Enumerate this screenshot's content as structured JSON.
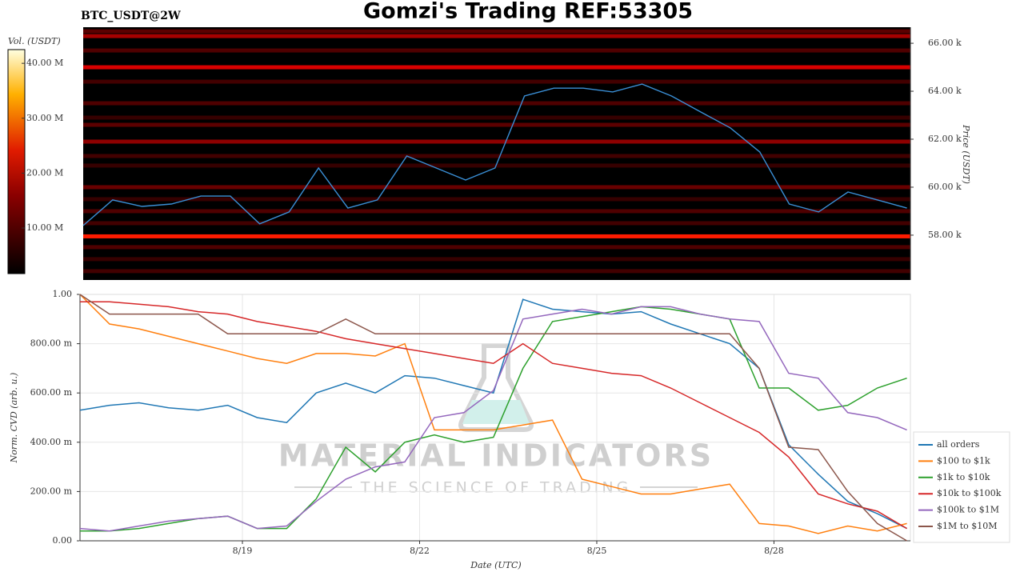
{
  "chart_data": [
    {
      "type": "heatmap",
      "title": "Gomzi's Trading REF:53305",
      "subtitle": "BTC_USDT@2W",
      "y_label": "Price (USDT)",
      "colorbar_label": "Vol. (USDT)",
      "xlim": [
        0.25,
        14.31
      ],
      "ylim": [
        56130,
        66670
      ],
      "yticks": [
        {
          "value": 58000,
          "label": "58.00 k"
        },
        {
          "value": 60000,
          "label": "60.00 k"
        },
        {
          "value": 62000,
          "label": "62.00 k"
        },
        {
          "value": 64000,
          "label": "64.00 k"
        },
        {
          "value": 66000,
          "label": "66.00 k"
        }
      ],
      "clim": [
        1700000,
        42500000
      ],
      "cticks": [
        {
          "value": 10000000,
          "label": "10.00 M"
        },
        {
          "value": 20000000,
          "label": "20.00 M"
        },
        {
          "value": 30000000,
          "label": "30.00 M"
        },
        {
          "value": 40000000,
          "label": "40.00 M"
        }
      ],
      "bands": [
        {
          "price": 66500,
          "volume": 9000000
        },
        {
          "price": 66300,
          "volume": 15000000
        },
        {
          "price": 65700,
          "volume": 8000000
        },
        {
          "price": 65000,
          "volume": 19000000
        },
        {
          "price": 64400,
          "volume": 7000000
        },
        {
          "price": 63500,
          "volume": 8000000
        },
        {
          "price": 62900,
          "volume": 6000000
        },
        {
          "price": 62600,
          "volume": 9000000
        },
        {
          "price": 61900,
          "volume": 13000000
        },
        {
          "price": 61300,
          "volume": 7000000
        },
        {
          "price": 60900,
          "volume": 6000000
        },
        {
          "price": 60000,
          "volume": 10000000
        },
        {
          "price": 59500,
          "volume": 6000000
        },
        {
          "price": 59000,
          "volume": 8000000
        },
        {
          "price": 58500,
          "volume": 7000000
        },
        {
          "price": 57950,
          "volume": 22000000
        },
        {
          "price": 57500,
          "volume": 8000000
        },
        {
          "price": 57000,
          "volume": 6000000
        },
        {
          "price": 56500,
          "volume": 7000000
        }
      ],
      "series": [
        {
          "color": "#3a8fd6",
          "values": [
            58400,
            59470,
            59200,
            59300,
            59630,
            59630,
            58470,
            58970,
            60800,
            59130,
            59470,
            61300,
            60800,
            60300,
            60800,
            63800,
            64130,
            64130,
            63970,
            64300,
            63800,
            63130,
            62470,
            61470,
            59300,
            58970,
            59800,
            59470,
            59130
          ]
        }
      ],
      "x": [
        0.25,
        0.75,
        1.25,
        1.75,
        2.25,
        2.75,
        3.25,
        3.75,
        4.25,
        4.75,
        5.25,
        5.75,
        6.25,
        6.75,
        7.25,
        7.75,
        8.25,
        8.75,
        9.25,
        9.75,
        10.25,
        10.75,
        11.25,
        11.75,
        12.25,
        12.75,
        13.25,
        13.75,
        14.25
      ]
    },
    {
      "type": "line",
      "x_label": "Date (UTC)",
      "y_label": "Norm. CVD (arb. u.)",
      "watermark": [
        "MATERIAL INDICATORS",
        "THE SCIENCE OF TRADING"
      ],
      "xlim": [
        0.25,
        14.31
      ],
      "xticks": [
        {
          "value": 3,
          "label": "8/19"
        },
        {
          "value": 6,
          "label": "8/22"
        },
        {
          "value": 9,
          "label": "8/25"
        },
        {
          "value": 12,
          "label": "8/28"
        }
      ],
      "ylim": [
        0,
        1
      ],
      "yticks": [
        {
          "value": 0,
          "label": "0.00"
        },
        {
          "value": 0.2,
          "label": "200.00 m"
        },
        {
          "value": 0.4,
          "label": "400.00 m"
        },
        {
          "value": 0.6,
          "label": "600.00 m"
        },
        {
          "value": 0.8,
          "label": "800.00 m"
        },
        {
          "value": 1,
          "label": "1.00"
        }
      ],
      "grid": true,
      "legend": "right-bottom",
      "x": [
        0.25,
        0.75,
        1.25,
        1.75,
        2.25,
        2.75,
        3.25,
        3.75,
        4.25,
        4.75,
        5.25,
        5.75,
        6.25,
        6.75,
        7.25,
        7.75,
        8.25,
        8.75,
        9.25,
        9.75,
        10.25,
        10.75,
        11.25,
        11.75,
        12.25,
        12.75,
        13.25,
        13.75,
        14.25
      ],
      "series": [
        {
          "name": "all orders",
          "color": "#1f77b4",
          "values": [
            0.53,
            0.55,
            0.56,
            0.54,
            0.53,
            0.55,
            0.5,
            0.48,
            0.6,
            0.64,
            0.6,
            0.67,
            0.66,
            0.63,
            0.6,
            0.98,
            0.94,
            0.93,
            0.92,
            0.93,
            0.88,
            0.84,
            0.8,
            0.7,
            0.39,
            0.27,
            0.16,
            0.11,
            0.05
          ]
        },
        {
          "name": "$100 to $1k",
          "color": "#ff7f0e",
          "values": [
            1.0,
            0.88,
            0.86,
            0.83,
            0.8,
            0.77,
            0.74,
            0.72,
            0.76,
            0.76,
            0.75,
            0.8,
            0.45,
            0.45,
            0.45,
            0.47,
            0.49,
            0.25,
            0.22,
            0.19,
            0.19,
            0.21,
            0.23,
            0.07,
            0.06,
            0.03,
            0.06,
            0.04,
            0.07
          ]
        },
        {
          "name": "$1k to $10k",
          "color": "#2ca02c",
          "values": [
            0.04,
            0.04,
            0.05,
            0.07,
            0.09,
            0.1,
            0.05,
            0.05,
            0.17,
            0.38,
            0.28,
            0.4,
            0.43,
            0.4,
            0.42,
            0.7,
            0.89,
            0.91,
            0.93,
            0.95,
            0.94,
            0.92,
            0.9,
            0.62,
            0.62,
            0.53,
            0.55,
            0.62,
            0.66
          ]
        },
        {
          "name": "$10k to $100k",
          "color": "#d62728",
          "values": [
            0.97,
            0.97,
            0.96,
            0.95,
            0.93,
            0.92,
            0.89,
            0.87,
            0.85,
            0.82,
            0.8,
            0.78,
            0.76,
            0.74,
            0.72,
            0.8,
            0.72,
            0.7,
            0.68,
            0.67,
            0.62,
            0.56,
            0.5,
            0.44,
            0.34,
            0.19,
            0.15,
            0.12,
            0.05
          ]
        },
        {
          "name": "$100k to $1M",
          "color": "#9467bd",
          "values": [
            0.05,
            0.04,
            0.06,
            0.08,
            0.09,
            0.1,
            0.05,
            0.06,
            0.16,
            0.25,
            0.3,
            0.32,
            0.5,
            0.52,
            0.61,
            0.9,
            0.92,
            0.94,
            0.92,
            0.95,
            0.95,
            0.92,
            0.9,
            0.89,
            0.68,
            0.66,
            0.52,
            0.5,
            0.45
          ]
        },
        {
          "name": "$1M to $10M",
          "color": "#8c564b",
          "values": [
            1.0,
            0.92,
            0.92,
            0.92,
            0.92,
            0.84,
            0.84,
            0.84,
            0.84,
            0.9,
            0.84,
            0.84,
            0.84,
            0.84,
            0.84,
            0.84,
            0.84,
            0.84,
            0.84,
            0.84,
            0.84,
            0.84,
            0.84,
            0.7,
            0.38,
            0.37,
            0.2,
            0.07,
            0.0
          ]
        }
      ]
    }
  ]
}
